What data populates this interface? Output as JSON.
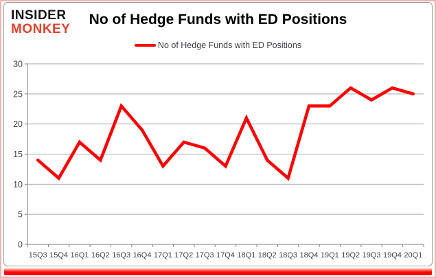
{
  "logo": {
    "line1": "INSIDER",
    "line2": "MONKEY"
  },
  "header": {
    "title": "No of Hedge Funds with ED Positions"
  },
  "legend": {
    "label": "No of Hedge Funds with ED Positions"
  },
  "chart_data": {
    "type": "line",
    "title": "No of Hedge Funds with ED Positions",
    "categories": [
      "15Q3",
      "15Q4",
      "16Q1",
      "16Q2",
      "16Q3",
      "16Q4",
      "17Q1",
      "17Q2",
      "17Q3",
      "17Q4",
      "18Q1",
      "18Q2",
      "18Q3",
      "18Q4",
      "19Q1",
      "19Q2",
      "19Q3",
      "19Q4",
      "20Q1"
    ],
    "series": [
      {
        "name": "No of Hedge Funds with ED Positions",
        "color": "#ff0000",
        "values": [
          14,
          11,
          17,
          14,
          23,
          19,
          13,
          17,
          16,
          13,
          21,
          14,
          11,
          23,
          23,
          26,
          24,
          26,
          25
        ]
      }
    ],
    "xlabel": "",
    "ylabel": "",
    "ylim": [
      0,
      30
    ],
    "yticks": [
      0,
      5,
      10,
      15,
      20,
      25,
      30
    ],
    "grid": true,
    "legend_position": "top"
  },
  "colors": {
    "line": "#ff0000",
    "grid": "#a6a6a6",
    "axis": "#808080",
    "tick_label": "#3f3f4d",
    "logo_black": "#141414",
    "logo_red": "#e2432c",
    "bottom_bar": "#fa0400",
    "outer_border": "#f3b0ad"
  }
}
